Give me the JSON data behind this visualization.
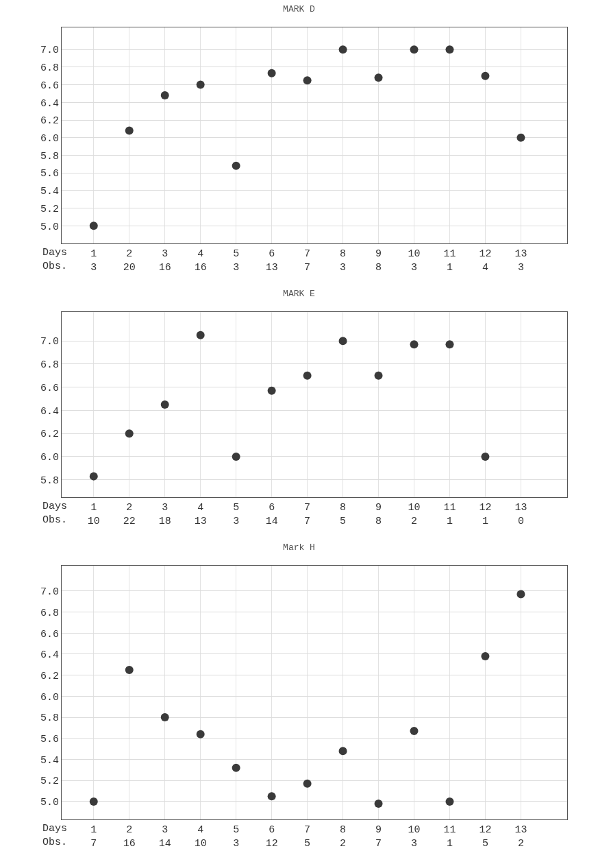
{
  "chart_data": [
    {
      "type": "scatter",
      "title": "MARK D",
      "xlabel": "Days\nObs.",
      "categories": [
        "1\n3",
        "2\n20",
        "3\n16",
        "4\n16",
        "5\n3",
        "6\n13",
        "7\n7",
        "8\n3",
        "9\n8",
        "10\n3",
        "11\n1",
        "12\n4",
        "13\n3"
      ],
      "values": [
        5.0,
        6.08,
        6.48,
        6.6,
        5.68,
        6.73,
        6.65,
        7.0,
        6.68,
        7.0,
        7.0,
        6.7,
        6.0
      ],
      "color": "#3a3a3a",
      "marker": "circle",
      "ylim": [
        4.8,
        7.25
      ],
      "yticks": [
        {
          "value": 5,
          "label": "5.0"
        },
        {
          "value": 5.2,
          "label": "5.2"
        },
        {
          "value": 5.4,
          "label": "5.4"
        },
        {
          "value": 5.6,
          "label": "5.6"
        },
        {
          "value": 5.8,
          "label": "5.8"
        },
        {
          "value": 6,
          "label": "6.0"
        },
        {
          "value": 6.2,
          "label": "6.2"
        },
        {
          "value": 6.4,
          "label": "6.4"
        },
        {
          "value": 6.6,
          "label": "6.6"
        },
        {
          "value": 6.8,
          "label": "6.8"
        },
        {
          "value": 7,
          "label": "7.0"
        }
      ],
      "grid": true
    },
    {
      "type": "scatter",
      "title": "MARK E",
      "xlabel": "Days\nObs.",
      "categories": [
        "1\n10",
        "2\n22",
        "3\n18",
        "4\n13",
        "5\n3",
        "6\n14",
        "7\n7",
        "8\n5",
        "9\n8",
        "10\n2",
        "11\n1",
        "12\n1",
        "13\n0"
      ],
      "values": [
        5.83,
        6.2,
        6.45,
        7.05,
        6.0,
        6.57,
        6.7,
        7.0,
        6.7,
        6.97,
        6.97,
        6.0,
        null
      ],
      "color": "#3a3a3a",
      "marker": "circle",
      "ylim": [
        5.65,
        7.25
      ],
      "yticks": [
        {
          "value": 5.8,
          "label": "5.8"
        },
        {
          "value": 6,
          "label": "6.0"
        },
        {
          "value": 6.2,
          "label": "6.2"
        },
        {
          "value": 6.4,
          "label": "6.4"
        },
        {
          "value": 6.6,
          "label": "6.6"
        },
        {
          "value": 6.8,
          "label": "6.8"
        },
        {
          "value": 7,
          "label": "7.0"
        }
      ],
      "grid": true
    },
    {
      "type": "scatter",
      "title": "Mark H",
      "xlabel": "Days\nObs.",
      "categories": [
        "1\n7",
        "2\n16",
        "3\n14",
        "4\n10",
        "5\n3",
        "6\n12",
        "7\n5",
        "8\n2",
        "9\n7",
        "10\n3",
        "11\n1",
        "12\n5",
        "13\n2"
      ],
      "values": [
        5.0,
        6.25,
        5.8,
        5.64,
        5.32,
        5.05,
        5.17,
        5.48,
        4.98,
        5.67,
        5.0,
        6.38,
        6.97
      ],
      "color": "#3a3a3a",
      "marker": "circle",
      "ylim": [
        4.83,
        7.24
      ],
      "yticks": [
        {
          "value": 5,
          "label": "5.0"
        },
        {
          "value": 5.2,
          "label": "5.2"
        },
        {
          "value": 5.4,
          "label": "5.4"
        },
        {
          "value": 5.6,
          "label": "5.6"
        },
        {
          "value": 5.8,
          "label": "5.8"
        },
        {
          "value": 6,
          "label": "6.0"
        },
        {
          "value": 6.2,
          "label": "6.2"
        },
        {
          "value": 6.4,
          "label": "6.4"
        },
        {
          "value": 6.6,
          "label": "6.6"
        },
        {
          "value": 6.8,
          "label": "6.8"
        },
        {
          "value": 7,
          "label": "7.0"
        }
      ],
      "grid": true
    }
  ]
}
